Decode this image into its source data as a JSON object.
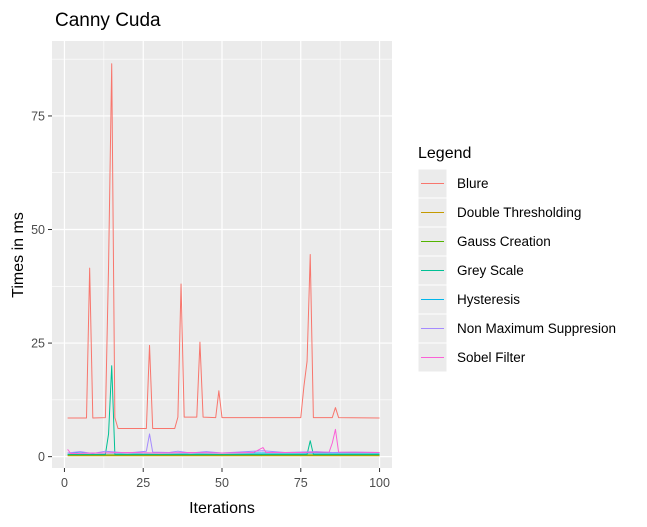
{
  "chart_data": {
    "type": "line",
    "title": "Canny Cuda",
    "xlabel": "Iterations",
    "ylabel": "Times in ms",
    "xlim": [
      -3.95,
      103.95
    ],
    "ylim": [
      -2.5,
      91.5
    ],
    "x_ticks": [
      0,
      25,
      50,
      75,
      100
    ],
    "y_ticks": [
      0,
      25,
      50,
      75
    ],
    "x_tick_labels": [
      "0",
      "25",
      "50",
      "75",
      "100"
    ],
    "y_tick_labels": [
      "0",
      "25",
      "50",
      "75"
    ],
    "grid": true,
    "legend": {
      "title": "Legend",
      "position": "right"
    },
    "series": [
      {
        "name": "Blure",
        "color": "#F8766D",
        "points": [
          [
            1,
            8.5
          ],
          [
            5,
            8.5
          ],
          [
            7,
            8.5
          ],
          [
            8,
            41.5
          ],
          [
            9,
            8.5
          ],
          [
            13,
            8.6
          ],
          [
            14,
            42
          ],
          [
            15,
            86.5
          ],
          [
            16,
            8.6
          ],
          [
            17,
            6.2
          ],
          [
            26,
            6.2
          ],
          [
            27,
            24.5
          ],
          [
            28,
            6.2
          ],
          [
            35,
            6.2
          ],
          [
            36,
            8.7
          ],
          [
            37,
            38
          ],
          [
            38,
            8.7
          ],
          [
            42,
            8.7
          ],
          [
            43,
            25.2
          ],
          [
            44,
            8.7
          ],
          [
            48,
            8.6
          ],
          [
            49,
            14.5
          ],
          [
            50,
            8.6
          ],
          [
            75,
            8.6
          ],
          [
            76,
            15.5
          ],
          [
            77,
            21
          ],
          [
            78,
            44.5
          ],
          [
            79,
            8.6
          ],
          [
            85,
            8.6
          ],
          [
            86,
            10.8
          ],
          [
            87,
            8.6
          ],
          [
            100,
            8.5
          ]
        ]
      },
      {
        "name": "Double Thresholding",
        "color": "#C49A00",
        "points": [
          [
            1,
            0.2
          ],
          [
            100,
            0.2
          ]
        ]
      },
      {
        "name": "Gauss Creation",
        "color": "#53B400",
        "points": [
          [
            1,
            0.4
          ],
          [
            100,
            0.4
          ]
        ]
      },
      {
        "name": "Grey Scale",
        "color": "#00C094",
        "points": [
          [
            1,
            0.5
          ],
          [
            13,
            0.5
          ],
          [
            14,
            5
          ],
          [
            15,
            20
          ],
          [
            16,
            0.5
          ],
          [
            77,
            0.5
          ],
          [
            78,
            3.5
          ],
          [
            79,
            0.5
          ],
          [
            100,
            0.5
          ]
        ]
      },
      {
        "name": "Hysteresis",
        "color": "#00B6EB",
        "points": [
          [
            1,
            0.8
          ],
          [
            100,
            0.8
          ]
        ]
      },
      {
        "name": "Non Maximum Suppresion",
        "color": "#A58AFF",
        "points": [
          [
            1,
            0.8
          ],
          [
            5,
            1.1
          ],
          [
            9,
            0.7
          ],
          [
            13,
            1.2
          ],
          [
            20,
            0.8
          ],
          [
            26,
            1.2
          ],
          [
            27,
            5
          ],
          [
            28,
            1
          ],
          [
            33,
            0.9
          ],
          [
            36,
            1.2
          ],
          [
            40,
            0.8
          ],
          [
            45,
            1.1
          ],
          [
            50,
            0.8
          ],
          [
            55,
            1
          ],
          [
            63,
            1.3
          ],
          [
            70,
            0.9
          ],
          [
            80,
            1.1
          ],
          [
            85,
            0.9
          ],
          [
            92,
            1
          ],
          [
            100,
            0.9
          ]
        ]
      },
      {
        "name": "Sobel Filter",
        "color": "#FB61D7",
        "points": [
          [
            1,
            1.6
          ],
          [
            2,
            0.7
          ],
          [
            10,
            0.8
          ],
          [
            20,
            0.9
          ],
          [
            30,
            0.8
          ],
          [
            40,
            0.9
          ],
          [
            50,
            0.8
          ],
          [
            60,
            0.9
          ],
          [
            63,
            2
          ],
          [
            64,
            0.9
          ],
          [
            75,
            0.9
          ],
          [
            84,
            1
          ],
          [
            85,
            3
          ],
          [
            86,
            6
          ],
          [
            87,
            1
          ],
          [
            100,
            0.9
          ]
        ]
      }
    ]
  }
}
